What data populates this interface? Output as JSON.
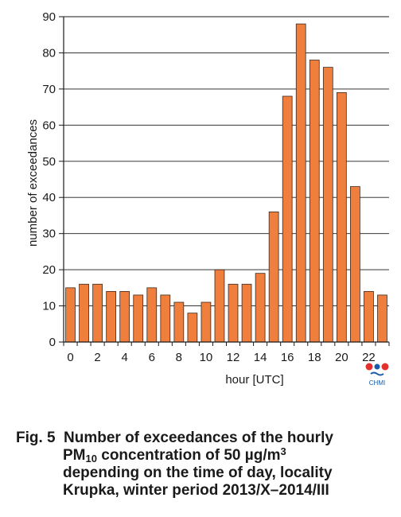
{
  "chart_data": {
    "type": "bar",
    "xlabel": "hour [UTC]",
    "ylabel": "number of exceedances",
    "ylim": [
      0,
      90
    ],
    "yticks": [
      0,
      10,
      20,
      30,
      40,
      50,
      60,
      70,
      80,
      90
    ],
    "xticks": [
      0,
      2,
      4,
      6,
      8,
      10,
      12,
      14,
      16,
      18,
      20,
      22
    ],
    "grid": true,
    "x": [
      0,
      1,
      2,
      3,
      4,
      5,
      6,
      7,
      8,
      9,
      10,
      11,
      12,
      13,
      14,
      15,
      16,
      17,
      18,
      19,
      20,
      21,
      22,
      23
    ],
    "values": [
      15,
      16,
      16,
      14,
      14,
      13,
      15,
      13,
      11,
      8,
      11,
      20,
      16,
      16,
      19,
      36,
      68,
      88,
      78,
      76,
      69,
      43,
      14,
      13
    ],
    "bar_color": "#f07e3c",
    "bar_outline": "#3a2a20"
  },
  "logo": {
    "text": "CHMI",
    "colors": [
      "#e3312d",
      "#1a5aa8"
    ]
  },
  "caption": {
    "fig_label": "Fig. 5",
    "line1": "Number of exceedances of the hourly",
    "pm": "PM",
    "pm_sub": "10",
    "line2_rest": " concentration of 50 µg/m",
    "unit_sup": "3",
    "line3": "depending on the time of day, locality",
    "line4": "Krupka, winter period 2013/X–2014/III"
  }
}
